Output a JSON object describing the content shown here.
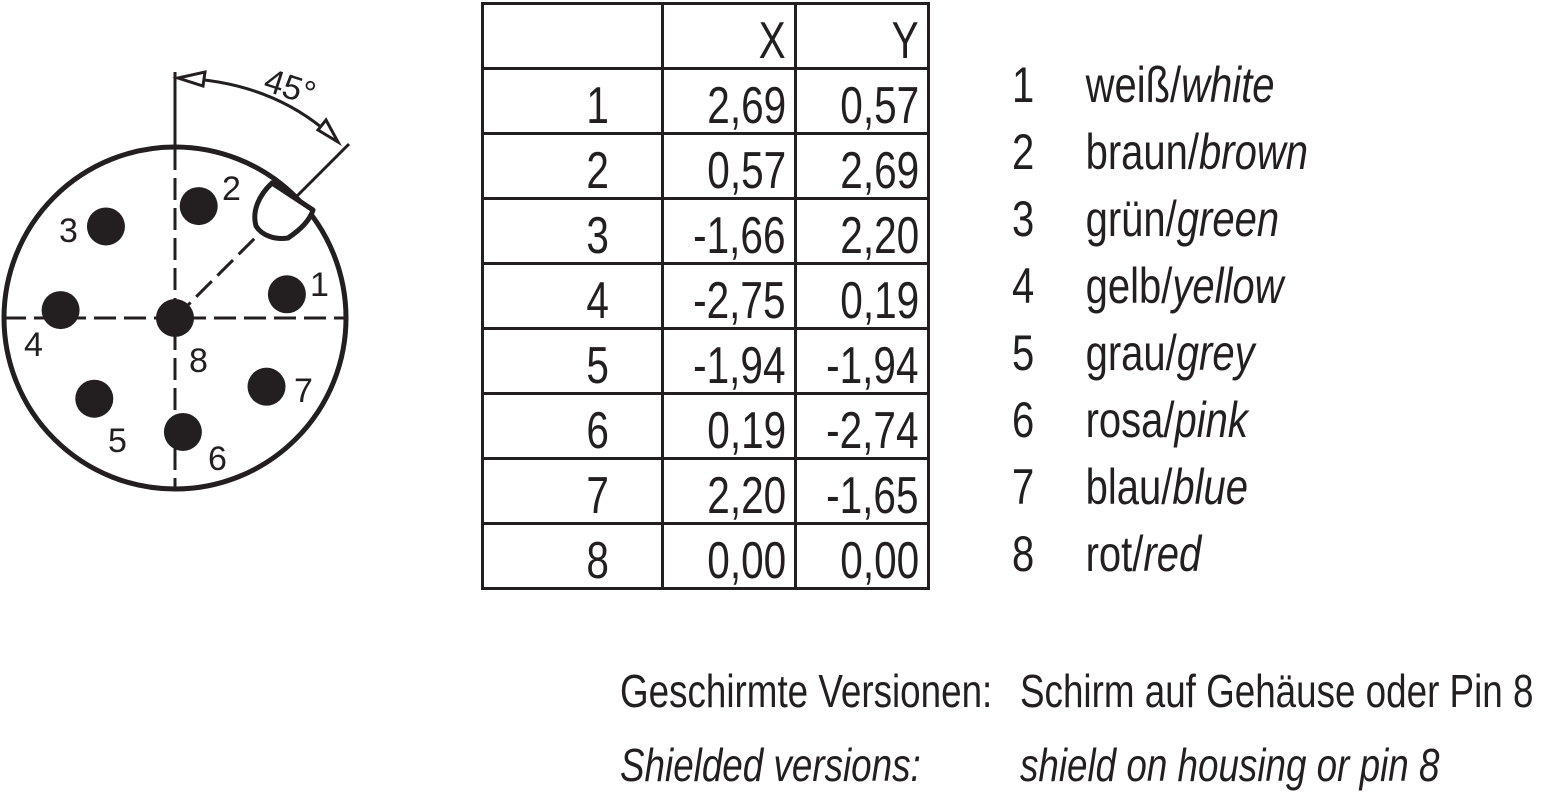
{
  "angle_label": "45°",
  "table": {
    "headers": [
      "",
      "X",
      "Y"
    ],
    "rows": [
      [
        "1",
        "2,69",
        "0,57"
      ],
      [
        "2",
        "0,57",
        "2,69"
      ],
      [
        "3",
        "-1,66",
        "2,20"
      ],
      [
        "4",
        "-2,75",
        "0,19"
      ],
      [
        "5",
        "-1,94",
        "-1,94"
      ],
      [
        "6",
        "0,19",
        "-2,74"
      ],
      [
        "7",
        "2,20",
        "-1,65"
      ],
      [
        "8",
        "0,00",
        "0,00"
      ]
    ]
  },
  "pins": [
    {
      "label": "1",
      "x": 2.69,
      "y": 0.57
    },
    {
      "label": "2",
      "x": 0.57,
      "y": 2.69
    },
    {
      "label": "3",
      "x": -1.66,
      "y": 2.2
    },
    {
      "label": "4",
      "x": -2.75,
      "y": 0.19
    },
    {
      "label": "5",
      "x": -1.94,
      "y": -1.94
    },
    {
      "label": "6",
      "x": 0.19,
      "y": -2.74
    },
    {
      "label": "7",
      "x": 2.2,
      "y": -1.65
    },
    {
      "label": "8",
      "x": 0.0,
      "y": 0.0
    }
  ],
  "legend": [
    {
      "num": "1",
      "de": "weiß/",
      "en": "white"
    },
    {
      "num": "2",
      "de": "braun/",
      "en": "brown"
    },
    {
      "num": "3",
      "de": "grün/",
      "en": "green"
    },
    {
      "num": "4",
      "de": "gelb/",
      "en": "yellow"
    },
    {
      "num": "5",
      "de": "grau/",
      "en": "grey"
    },
    {
      "num": "6",
      "de": "rosa/",
      "en": "pink"
    },
    {
      "num": "7",
      "de": "blau/",
      "en": "blue"
    },
    {
      "num": "8",
      "de": "rot/",
      "en": "red"
    }
  ],
  "note": {
    "de_label": "Geschirmte Versionen:",
    "de_text": "Schirm auf Gehäuse oder Pin 8",
    "en_label": "Shielded versions:",
    "en_text": "shield on housing or pin 8"
  },
  "colors": {
    "ink": "#231f20",
    "background": "#ffffff"
  }
}
